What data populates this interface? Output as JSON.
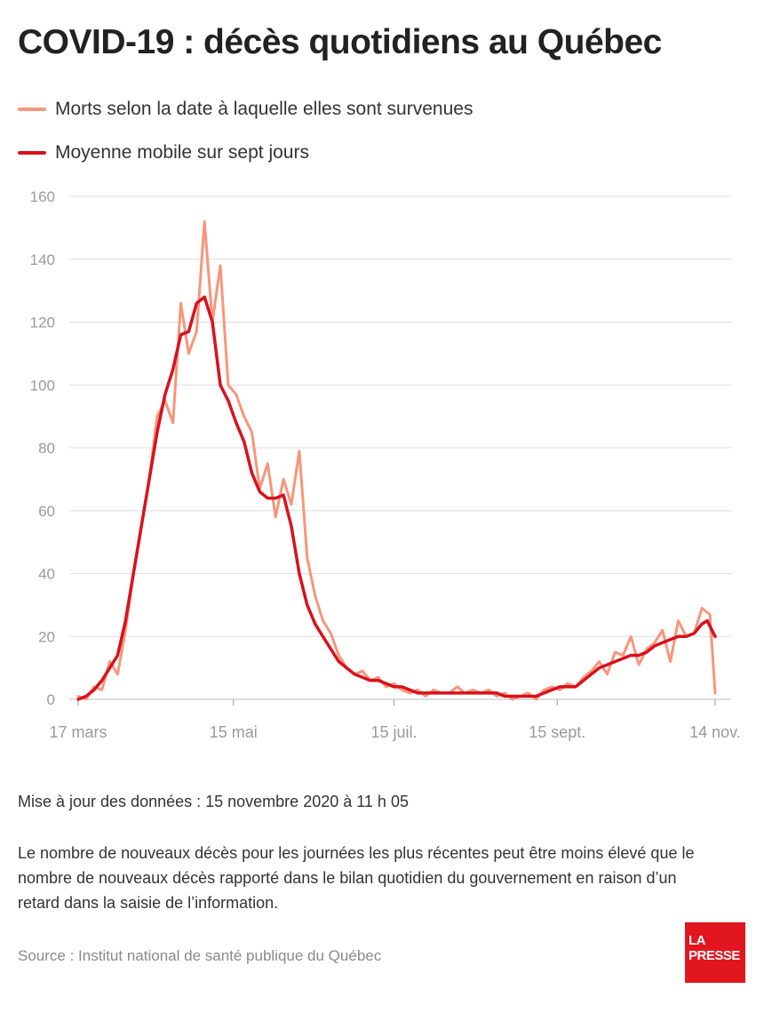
{
  "title": "COVID-19 : décès quotidiens au Québec",
  "legend": {
    "daily": "Morts selon la date à laquelle elles sont survenues",
    "average": "Moyenne mobile sur sept jours"
  },
  "colors": {
    "daily": "#f7967a",
    "average": "#d9111e",
    "grid": "#dddddd",
    "axis_text": "#9a9a9a",
    "brand": "#e2161f"
  },
  "chart_data": {
    "type": "line",
    "x_start": "2020-03-17",
    "x_end": "2020-11-14",
    "ylim": [
      0,
      160
    ],
    "yticks": [
      0,
      20,
      40,
      60,
      80,
      100,
      120,
      140,
      160
    ],
    "xticks": [
      {
        "date": "2020-03-17",
        "label": "17 mars"
      },
      {
        "date": "2020-05-15",
        "label": "15 mai"
      },
      {
        "date": "2020-07-15",
        "label": "15 juil."
      },
      {
        "date": "2020-09-15",
        "label": "15 sept."
      },
      {
        "date": "2020-11-14",
        "label": "14 nov."
      }
    ],
    "series": [
      {
        "name": "Morts selon la date à laquelle elles sont survenues",
        "x": [
          "2020-03-17",
          "2020-03-20",
          "2020-03-23",
          "2020-03-26",
          "2020-03-29",
          "2020-04-01",
          "2020-04-04",
          "2020-04-07",
          "2020-04-10",
          "2020-04-13",
          "2020-04-16",
          "2020-04-19",
          "2020-04-22",
          "2020-04-25",
          "2020-04-28",
          "2020-05-01",
          "2020-05-04",
          "2020-05-07",
          "2020-05-10",
          "2020-05-13",
          "2020-05-16",
          "2020-05-19",
          "2020-05-22",
          "2020-05-25",
          "2020-05-28",
          "2020-05-31",
          "2020-06-03",
          "2020-06-06",
          "2020-06-09",
          "2020-06-12",
          "2020-06-15",
          "2020-06-18",
          "2020-06-21",
          "2020-06-24",
          "2020-06-27",
          "2020-06-30",
          "2020-07-03",
          "2020-07-06",
          "2020-07-09",
          "2020-07-12",
          "2020-07-15",
          "2020-07-18",
          "2020-07-21",
          "2020-07-24",
          "2020-07-27",
          "2020-07-30",
          "2020-08-02",
          "2020-08-05",
          "2020-08-08",
          "2020-08-11",
          "2020-08-14",
          "2020-08-17",
          "2020-08-20",
          "2020-08-23",
          "2020-08-26",
          "2020-08-29",
          "2020-09-01",
          "2020-09-04",
          "2020-09-07",
          "2020-09-10",
          "2020-09-13",
          "2020-09-16",
          "2020-09-19",
          "2020-09-22",
          "2020-09-25",
          "2020-09-28",
          "2020-10-01",
          "2020-10-04",
          "2020-10-07",
          "2020-10-10",
          "2020-10-13",
          "2020-10-16",
          "2020-10-19",
          "2020-10-22",
          "2020-10-25",
          "2020-10-28",
          "2020-10-31",
          "2020-11-03",
          "2020-11-06",
          "2020-11-09",
          "2020-11-12",
          "2020-11-14"
        ],
        "values": [
          1,
          0,
          4,
          3,
          12,
          8,
          22,
          40,
          55,
          70,
          90,
          95,
          88,
          126,
          110,
          117,
          152,
          120,
          138,
          100,
          97,
          90,
          85,
          67,
          75,
          58,
          70,
          62,
          79,
          45,
          33,
          25,
          21,
          14,
          10,
          8,
          9,
          6,
          7,
          4,
          5,
          3,
          2,
          3,
          1,
          3,
          2,
          2,
          4,
          2,
          3,
          2,
          3,
          1,
          2,
          0,
          1,
          2,
          0,
          3,
          4,
          3,
          5,
          4,
          7,
          9,
          12,
          8,
          15,
          14,
          20,
          11,
          16,
          18,
          22,
          12,
          25,
          20,
          21,
          29,
          27,
          2
        ]
      },
      {
        "name": "Moyenne mobile sur sept jours",
        "x": [
          "2020-03-17",
          "2020-03-20",
          "2020-03-23",
          "2020-03-26",
          "2020-03-29",
          "2020-04-01",
          "2020-04-04",
          "2020-04-07",
          "2020-04-10",
          "2020-04-13",
          "2020-04-16",
          "2020-04-19",
          "2020-04-22",
          "2020-04-25",
          "2020-04-28",
          "2020-05-01",
          "2020-05-04",
          "2020-05-07",
          "2020-05-10",
          "2020-05-13",
          "2020-05-16",
          "2020-05-19",
          "2020-05-22",
          "2020-05-25",
          "2020-05-28",
          "2020-05-31",
          "2020-06-03",
          "2020-06-06",
          "2020-06-09",
          "2020-06-12",
          "2020-06-15",
          "2020-06-18",
          "2020-06-21",
          "2020-06-24",
          "2020-06-27",
          "2020-06-30",
          "2020-07-03",
          "2020-07-06",
          "2020-07-09",
          "2020-07-12",
          "2020-07-15",
          "2020-07-18",
          "2020-07-21",
          "2020-07-24",
          "2020-07-27",
          "2020-07-30",
          "2020-08-02",
          "2020-08-05",
          "2020-08-08",
          "2020-08-11",
          "2020-08-14",
          "2020-08-17",
          "2020-08-20",
          "2020-08-23",
          "2020-08-26",
          "2020-08-29",
          "2020-09-01",
          "2020-09-04",
          "2020-09-07",
          "2020-09-10",
          "2020-09-13",
          "2020-09-16",
          "2020-09-19",
          "2020-09-22",
          "2020-09-25",
          "2020-09-28",
          "2020-10-01",
          "2020-10-04",
          "2020-10-07",
          "2020-10-10",
          "2020-10-13",
          "2020-10-16",
          "2020-10-19",
          "2020-10-22",
          "2020-10-25",
          "2020-10-28",
          "2020-10-31",
          "2020-11-03",
          "2020-11-06",
          "2020-11-09",
          "2020-11-11",
          "2020-11-14"
        ],
        "values": [
          0,
          1,
          3,
          6,
          10,
          14,
          25,
          40,
          55,
          70,
          85,
          97,
          105,
          116,
          117,
          126,
          128,
          120,
          100,
          95,
          88,
          82,
          72,
          66,
          64,
          64,
          65,
          55,
          40,
          30,
          24,
          20,
          16,
          12,
          10,
          8,
          7,
          6,
          6,
          5,
          4,
          4,
          3,
          2,
          2,
          2,
          2,
          2,
          2,
          2,
          2,
          2,
          2,
          2,
          1,
          1,
          1,
          1,
          1,
          2,
          3,
          4,
          4,
          4,
          6,
          8,
          10,
          11,
          12,
          13,
          14,
          14,
          15,
          17,
          18,
          19,
          20,
          20,
          21,
          24,
          25,
          20
        ]
      }
    ]
  },
  "updated": "Mise à jour des données : 15 novembre 2020 à 11 h 05",
  "note": "Le nombre de nouveaux décès pour les journées les plus récentes peut être moins élevé que le nombre de nouveaux décès rapporté dans le bilan quotidien du gouvernement en raison d’un retard dans la saisie de l’information.",
  "source": "Source : Institut national de santé publique du Québec",
  "logo": {
    "line1": "LA",
    "line2": "PRESSE"
  }
}
